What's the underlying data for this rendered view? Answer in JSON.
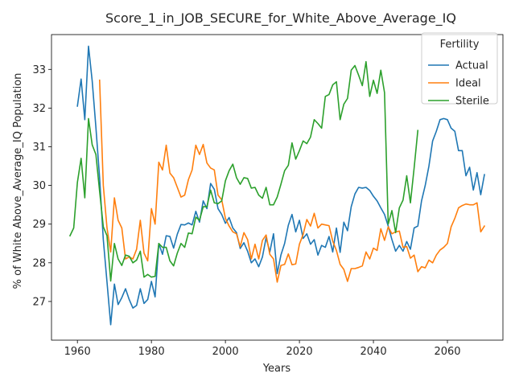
{
  "chart_data": {
    "type": "line",
    "title": "Score_1_in_JOB_SECURE_for_White_Above_Average_IQ",
    "xlabel": "Years",
    "ylabel": "% of White Above_Average_IQ Population",
    "xlim": [
      1953,
      2075
    ],
    "ylim": [
      26.0,
      33.9
    ],
    "xticks": [
      1960,
      1980,
      2000,
      2020,
      2040,
      2060
    ],
    "yticks": [
      27,
      28,
      29,
      30,
      31,
      32,
      33
    ],
    "grid": false,
    "legend": {
      "title": "Fertility",
      "position": "top-right"
    },
    "series": [
      {
        "name": "Actual",
        "color": "#1f77b4",
        "x": [
          1960,
          1961,
          1962,
          1963,
          1964,
          1965,
          1966,
          1967,
          1968,
          1969,
          1970,
          1971,
          1972,
          1973,
          1974,
          1975,
          1976,
          1977,
          1978,
          1979,
          1980,
          1981,
          1982,
          1983,
          1984,
          1985,
          1986,
          1987,
          1988,
          1989,
          1990,
          1991,
          1992,
          1993,
          1994,
          1995,
          1996,
          1997,
          1998,
          1999,
          2000,
          2001,
          2002,
          2003,
          2004,
          2005,
          2006,
          2007,
          2008,
          2009,
          2010,
          2011,
          2012,
          2013,
          2014,
          2015,
          2016,
          2017,
          2018,
          2019,
          2020,
          2021,
          2022,
          2023,
          2024,
          2025,
          2026,
          2027,
          2028,
          2029,
          2030,
          2031,
          2032,
          2033,
          2034,
          2035,
          2036,
          2037,
          2038,
          2039,
          2040,
          2041,
          2042,
          2043,
          2044,
          2045,
          2046,
          2047,
          2048,
          2049,
          2050,
          2051,
          2052,
          2053,
          2054,
          2055,
          2056,
          2057,
          2058,
          2059,
          2060,
          2061,
          2062,
          2063,
          2064,
          2065,
          2066,
          2067,
          2068,
          2069,
          2070
        ],
        "y": [
          32.05,
          32.75,
          31.7,
          33.6,
          32.7,
          31.5,
          30.2,
          28.6,
          27.5,
          26.4,
          27.45,
          26.92,
          27.1,
          27.33,
          27.05,
          26.83,
          26.9,
          27.33,
          26.95,
          27.05,
          27.52,
          27.12,
          28.5,
          28.22,
          28.7,
          28.68,
          28.38,
          28.74,
          28.99,
          28.98,
          29.03,
          28.98,
          29.33,
          29.05,
          29.6,
          29.4,
          30.05,
          29.9,
          29.4,
          29.25,
          29.02,
          29.17,
          28.9,
          28.78,
          28.37,
          28.52,
          28.3,
          28.0,
          28.1,
          27.9,
          28.15,
          28.65,
          28.28,
          28.75,
          27.72,
          28.2,
          28.5,
          28.97,
          29.25,
          28.8,
          29.1,
          28.63,
          28.75,
          28.48,
          28.6,
          28.2,
          28.45,
          28.4,
          28.68,
          28.28,
          28.9,
          28.27,
          29.05,
          28.83,
          29.45,
          29.78,
          29.95,
          29.93,
          29.95,
          29.87,
          29.72,
          29.6,
          29.42,
          29.25,
          28.95,
          28.6,
          28.3,
          28.45,
          28.3,
          28.55,
          28.35,
          28.9,
          28.95,
          29.6,
          30.0,
          30.5,
          31.15,
          31.4,
          31.7,
          31.73,
          31.7,
          31.48,
          31.4,
          30.9,
          30.9,
          30.25,
          30.47,
          29.88,
          30.33,
          29.76,
          30.28
        ]
      },
      {
        "name": "Ideal",
        "color": "#ff7f0e",
        "x": [
          1966,
          1967,
          1968,
          1969,
          1970,
          1971,
          1972,
          1973,
          1974,
          1975,
          1976,
          1977,
          1978,
          1979,
          1980,
          1981,
          1982,
          1983,
          1984,
          1985,
          1986,
          1987,
          1988,
          1989,
          1990,
          1991,
          1992,
          1993,
          1994,
          1995,
          1996,
          1997,
          1998,
          1999,
          2000,
          2001,
          2002,
          2003,
          2004,
          2005,
          2006,
          2007,
          2008,
          2009,
          2010,
          2011,
          2012,
          2013,
          2014,
          2015,
          2016,
          2017,
          2018,
          2019,
          2020,
          2021,
          2022,
          2023,
          2024,
          2025,
          2026,
          2027,
          2028,
          2029,
          2030,
          2031,
          2032,
          2033,
          2034,
          2035,
          2036,
          2037,
          2038,
          2039,
          2040,
          2041,
          2042,
          2043,
          2044,
          2045,
          2046,
          2047,
          2048,
          2049,
          2050,
          2051,
          2052,
          2053,
          2054,
          2055,
          2056,
          2057,
          2058,
          2059,
          2060,
          2061,
          2062,
          2063,
          2064,
          2065,
          2066,
          2067,
          2068,
          2069,
          2070
        ],
        "y": [
          32.72,
          30.0,
          28.9,
          28.28,
          29.68,
          29.1,
          28.9,
          28.1,
          28.15,
          28.1,
          28.35,
          29.1,
          28.25,
          28.05,
          29.4,
          29.0,
          30.6,
          30.4,
          31.04,
          30.32,
          30.2,
          29.95,
          29.7,
          29.75,
          30.15,
          30.4,
          31.04,
          30.8,
          31.06,
          30.58,
          30.45,
          30.4,
          29.75,
          29.63,
          29.15,
          28.95,
          28.8,
          28.75,
          28.42,
          28.78,
          28.6,
          28.1,
          28.48,
          28.1,
          28.58,
          28.72,
          28.22,
          28.1,
          27.5,
          27.93,
          27.96,
          28.23,
          27.95,
          27.97,
          28.48,
          28.73,
          29.12,
          28.95,
          29.28,
          28.9,
          29.0,
          28.98,
          28.96,
          28.56,
          28.32,
          27.96,
          27.83,
          27.52,
          27.85,
          27.85,
          27.88,
          27.92,
          28.28,
          28.1,
          28.38,
          28.32,
          28.88,
          28.58,
          28.93,
          28.75,
          28.8,
          28.82,
          28.4,
          28.42,
          28.12,
          28.2,
          27.77,
          27.9,
          27.87,
          28.07,
          28.0,
          28.2,
          28.33,
          28.4,
          28.5,
          28.93,
          29.15,
          29.42,
          29.48,
          29.52,
          29.5,
          29.5,
          29.55,
          28.8,
          28.95
        ]
      },
      {
        "name": "Sterile",
        "color": "#2ca02c",
        "x": [
          1958,
          1959,
          1960,
          1961,
          1962,
          1963,
          1964,
          1965,
          1966,
          1967,
          1968,
          1969,
          1970,
          1971,
          1972,
          1973,
          1974,
          1975,
          1976,
          1977,
          1978,
          1979,
          1980,
          1981,
          1982,
          1983,
          1984,
          1985,
          1986,
          1987,
          1988,
          1989,
          1990,
          1991,
          1992,
          1993,
          1994,
          1995,
          1996,
          1997,
          1998,
          1999,
          2000,
          2001,
          2002,
          2003,
          2004,
          2005,
          2006,
          2007,
          2008,
          2009,
          2010,
          2011,
          2012,
          2013,
          2014,
          2015,
          2016,
          2017,
          2018,
          2019,
          2020,
          2021,
          2022,
          2023,
          2024,
          2025,
          2026,
          2027,
          2028,
          2029,
          2030,
          2031,
          2032,
          2033,
          2034,
          2035,
          2036,
          2037,
          2038,
          2039,
          2040,
          2041,
          2042,
          2043,
          2044,
          2045,
          2046,
          2047,
          2048,
          2049,
          2050,
          2051,
          2052
        ],
        "y": [
          28.7,
          28.9,
          30.08,
          30.7,
          29.68,
          31.73,
          31.05,
          30.8,
          29.85,
          28.93,
          28.7,
          27.53,
          28.5,
          28.1,
          27.93,
          28.2,
          28.17,
          28.0,
          28.07,
          28.3,
          27.63,
          27.7,
          27.63,
          27.65,
          28.5,
          28.4,
          28.4,
          28.05,
          27.92,
          28.25,
          28.5,
          28.4,
          28.77,
          28.75,
          29.18,
          29.1,
          29.45,
          29.45,
          29.88,
          29.55,
          29.53,
          29.6,
          30.12,
          30.38,
          30.55,
          30.2,
          30.03,
          30.2,
          30.18,
          29.93,
          29.95,
          29.75,
          29.67,
          29.95,
          29.5,
          29.5,
          29.7,
          30.03,
          30.38,
          30.52,
          31.1,
          30.68,
          30.9,
          31.15,
          31.08,
          31.25,
          31.7,
          31.6,
          31.48,
          32.3,
          32.35,
          32.6,
          32.68,
          31.7,
          32.1,
          32.25,
          32.98,
          33.1,
          32.85,
          32.58,
          33.2,
          32.3,
          32.72,
          32.38,
          32.98,
          32.4,
          29.0,
          29.35,
          28.78,
          29.42,
          29.62,
          30.25,
          29.55,
          30.45,
          31.42
        ]
      }
    ]
  }
}
